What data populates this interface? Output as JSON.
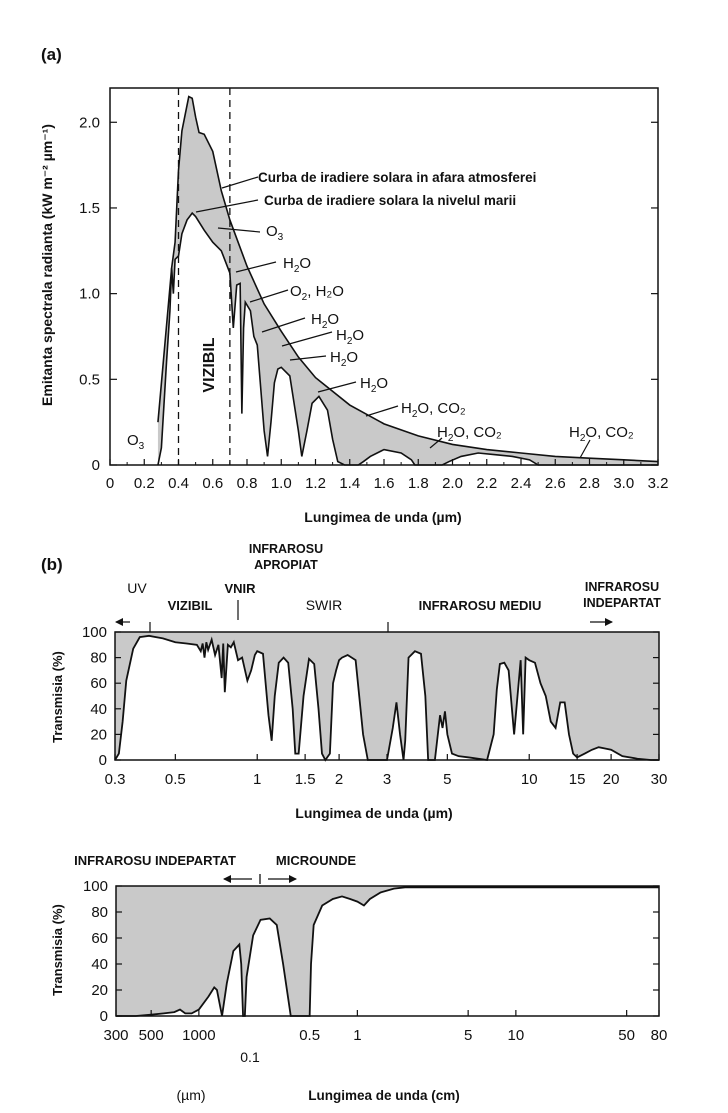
{
  "chart_data": [
    {
      "panel": "(a)",
      "type": "area",
      "xlabel": "Lungimea de unda (µm)",
      "ylabel": "Emitanta spectrala radianta (kW m⁻² µm⁻¹)",
      "xlim": [
        0,
        3.2
      ],
      "ylim": [
        0,
        2.2
      ],
      "x_ticks": [
        "0",
        "0.2",
        "0.4",
        "0.6",
        "0.8",
        "1.0",
        "1.2",
        "1.4",
        "1.6",
        "1.8",
        "2.0",
        "2.2",
        "2.4",
        "2.6",
        "2.8",
        "3.0",
        "3.2"
      ],
      "y_ticks": [
        "0",
        "0.5",
        "1.0",
        "1.5",
        "2.0"
      ],
      "visible_band": {
        "label": "VIZIBIL",
        "from": 0.4,
        "to": 0.7
      },
      "series": [
        {
          "name": "Curba de iradiere solara in afara atmosferei",
          "x": [
            0.28,
            0.32,
            0.36,
            0.38,
            0.4,
            0.42,
            0.44,
            0.46,
            0.48,
            0.5,
            0.52,
            0.55,
            0.6,
            0.65,
            0.7,
            0.8,
            0.9,
            1.0,
            1.1,
            1.2,
            1.4,
            1.6,
            1.8,
            2.0,
            2.2,
            2.4,
            2.6,
            2.8,
            3.0,
            3.2
          ],
          "y": [
            0.25,
            0.7,
            1.15,
            1.3,
            1.72,
            1.95,
            2.05,
            2.15,
            2.14,
            2.03,
            1.94,
            1.93,
            1.83,
            1.6,
            1.43,
            1.16,
            0.94,
            0.78,
            0.63,
            0.51,
            0.35,
            0.24,
            0.17,
            0.12,
            0.09,
            0.07,
            0.05,
            0.04,
            0.03,
            0.02
          ]
        },
        {
          "name": "Curba de iradiere solara la nivelul marii",
          "x": [
            0.28,
            0.3,
            0.33,
            0.35,
            0.36,
            0.37,
            0.38,
            0.4,
            0.42,
            0.45,
            0.48,
            0.5,
            0.55,
            0.6,
            0.65,
            0.7,
            0.72,
            0.74,
            0.76,
            0.77,
            0.78,
            0.79,
            0.82,
            0.84,
            0.86,
            0.9,
            0.92,
            0.94,
            0.96,
            0.98,
            1.0,
            1.05,
            1.1,
            1.12,
            1.15,
            1.18,
            1.22,
            1.27,
            1.3,
            1.33,
            1.37,
            1.4,
            1.45,
            1.48,
            1.52,
            1.6,
            1.7,
            1.76,
            1.78,
            1.8,
            1.82,
            1.88,
            1.94,
            1.98,
            2.05,
            2.15,
            2.25,
            2.35,
            2.45,
            2.5,
            2.6,
            2.7,
            2.8,
            2.9,
            3.0,
            3.1,
            3.2
          ],
          "y": [
            0.0,
            0.1,
            0.6,
            0.9,
            1.15,
            1.0,
            1.2,
            1.22,
            1.35,
            1.43,
            1.47,
            1.45,
            1.37,
            1.3,
            1.25,
            1.12,
            0.8,
            1.05,
            1.06,
            0.3,
            0.8,
            0.95,
            0.9,
            0.75,
            0.7,
            0.2,
            0.05,
            0.25,
            0.48,
            0.56,
            0.57,
            0.52,
            0.2,
            0.05,
            0.2,
            0.36,
            0.4,
            0.32,
            0.15,
            0.02,
            0.0,
            0.0,
            0.0,
            0.02,
            0.05,
            0.09,
            0.07,
            0.03,
            0.0,
            0.0,
            0.0,
            0.0,
            0.0,
            0.02,
            0.05,
            0.07,
            0.06,
            0.05,
            0.03,
            0.0,
            0.0,
            0.0,
            0.0,
            0.0,
            0.0,
            0.0,
            0.0
          ]
        }
      ],
      "annotations": [
        {
          "text": "Curba de iradiere solara in afara atmosferei",
          "bold": true
        },
        {
          "text": "Curba de iradiere solara la nivelul marii",
          "bold": true
        },
        {
          "molecule": "O",
          "sub": "3",
          "rest": "",
          "x": 0.65
        },
        {
          "molecule": "H",
          "sub": "2",
          "rest": "O",
          "x": 0.75
        },
        {
          "molecule": "O",
          "sub": "2",
          "rest": ", H₂O",
          "x": 0.82
        },
        {
          "molecule": "H",
          "sub": "2",
          "rest": "O",
          "x": 0.92
        },
        {
          "molecule": "H",
          "sub": "2",
          "rest": "O",
          "x": 1.08
        },
        {
          "molecule": "H",
          "sub": "2",
          "rest": "O",
          "x": 1.12
        },
        {
          "molecule": "H",
          "sub": "2",
          "rest": "O",
          "x": 1.35
        },
        {
          "molecule": "H",
          "sub": "2",
          "rest": "O, CO₂",
          "x": 1.87
        },
        {
          "molecule": "H",
          "sub": "2",
          "rest": "O, CO₂",
          "x": 2.15
        },
        {
          "molecule": "H",
          "sub": "2",
          "rest": "O, CO₂",
          "x": 2.75
        },
        {
          "molecule": "O",
          "sub": "3",
          "rest": "",
          "x": 0.22
        }
      ]
    },
    {
      "panel": "(b)",
      "type": "area",
      "xlabel": "Lungimea de unda (µm)",
      "ylabel": "Transmisia  (%)",
      "x_scale": "log",
      "xlim": [
        0.3,
        30
      ],
      "ylim": [
        0,
        100
      ],
      "x_ticks": [
        "0.3",
        "0.5",
        "1",
        "1.5",
        "2",
        "3",
        "5",
        "10",
        "15",
        "20",
        "30"
      ],
      "y_ticks": [
        "0",
        "20",
        "40",
        "60",
        "80",
        "100"
      ],
      "regions": [
        "UV",
        "VIZIBIL",
        "VNIR",
        "SWIR",
        "INFRAROSU MEDIU",
        "INFRAROSU APROPIAT",
        "INFRAROSU INDEPARTAT"
      ],
      "series": [
        {
          "name": "",
          "x": [
            0.3,
            0.31,
            0.32,
            0.33,
            0.35,
            0.37,
            0.4,
            0.45,
            0.5,
            0.55,
            0.6,
            0.62,
            0.63,
            0.64,
            0.65,
            0.66,
            0.68,
            0.7,
            0.72,
            0.74,
            0.75,
            0.76,
            0.78,
            0.8,
            0.82,
            0.85,
            0.88,
            0.92,
            0.95,
            0.98,
            1.0,
            1.05,
            1.1,
            1.13,
            1.16,
            1.2,
            1.25,
            1.3,
            1.35,
            1.38,
            1.42,
            1.48,
            1.55,
            1.62,
            1.68,
            1.73,
            1.78,
            1.85,
            1.9,
            1.95,
            2.0,
            2.05,
            2.15,
            2.3,
            2.45,
            2.55,
            2.65,
            2.75,
            2.9,
            3.0,
            3.15,
            3.25,
            3.35,
            3.45,
            3.5,
            3.6,
            3.8,
            4.0,
            4.15,
            4.25,
            4.35,
            4.5,
            4.7,
            4.8,
            4.9,
            5.0,
            5.2,
            5.5,
            6.0,
            7.0,
            7.4,
            7.6,
            7.8,
            8.1,
            8.4,
            8.8,
            9.3,
            9.5,
            9.7,
            10.0,
            10.5,
            11.0,
            11.5,
            12.0,
            12.5,
            13.0,
            13.5,
            14.0,
            14.5,
            15.0,
            16.0,
            17.0,
            18.0,
            19.0,
            20.0,
            22.0,
            25.0,
            28.0,
            30.0
          ],
          "y": [
            0,
            5,
            30,
            62,
            87,
            96,
            97,
            95,
            92,
            91,
            90,
            85,
            91,
            80,
            92,
            86,
            94,
            82,
            90,
            64,
            91,
            53,
            90,
            88,
            92,
            78,
            80,
            62,
            70,
            82,
            85,
            83,
            35,
            15,
            50,
            76,
            80,
            76,
            40,
            5,
            5,
            50,
            79,
            75,
            40,
            5,
            0,
            5,
            60,
            70,
            78,
            80,
            82,
            78,
            20,
            0,
            0,
            0,
            0,
            0,
            25,
            45,
            20,
            0,
            15,
            80,
            85,
            83,
            50,
            0,
            0,
            0,
            35,
            25,
            38,
            20,
            5,
            3,
            2,
            0,
            20,
            55,
            75,
            76,
            70,
            20,
            78,
            20,
            80,
            78,
            76,
            60,
            50,
            30,
            25,
            45,
            45,
            20,
            5,
            2,
            5,
            8,
            10,
            9,
            8,
            3,
            1,
            0,
            0
          ]
        }
      ]
    },
    {
      "type": "area",
      "xlabel": "Lungimea de unda  (cm)",
      "xlabel_left": "(µm)",
      "ylabel": "Transmisia  (%)",
      "x_scale": "log",
      "xlim_um": [
        300,
        800000
      ],
      "ylim": [
        0,
        100
      ],
      "x_ticks": [
        "300",
        "500",
        "1000",
        "0.5",
        "1",
        "5",
        "10",
        "50",
        "80"
      ],
      "x_tick_sub": "0.1",
      "y_ticks": [
        "0",
        "20",
        "40",
        "60",
        "80",
        "100"
      ],
      "regions": [
        "INFRAROSU INDEPARTAT",
        "MICROUNDE"
      ],
      "series": [
        {
          "name": "",
          "x": [
            300,
            400,
            500,
            600,
            700,
            760,
            820,
            900,
            1000,
            1150,
            1250,
            1300,
            1400,
            1500,
            1650,
            1800,
            1850,
            1900,
            1950,
            2000,
            2200,
            2450,
            2800,
            3100,
            3400,
            3800,
            4200,
            4600,
            4850,
            5000,
            5100,
            5300,
            6000,
            7000,
            8000,
            9000,
            10000,
            11000,
            12000,
            14000,
            17000,
            20000,
            30000,
            100000,
            800000
          ],
          "y": [
            0,
            0,
            1,
            2,
            3,
            5,
            2,
            2,
            5,
            15,
            22,
            20,
            0,
            25,
            50,
            55,
            40,
            0,
            0,
            30,
            62,
            74,
            75,
            70,
            40,
            0,
            0,
            0,
            0,
            0,
            40,
            70,
            85,
            90,
            92,
            90,
            88,
            85,
            90,
            95,
            98,
            99,
            99,
            99,
            99
          ]
        }
      ]
    }
  ]
}
